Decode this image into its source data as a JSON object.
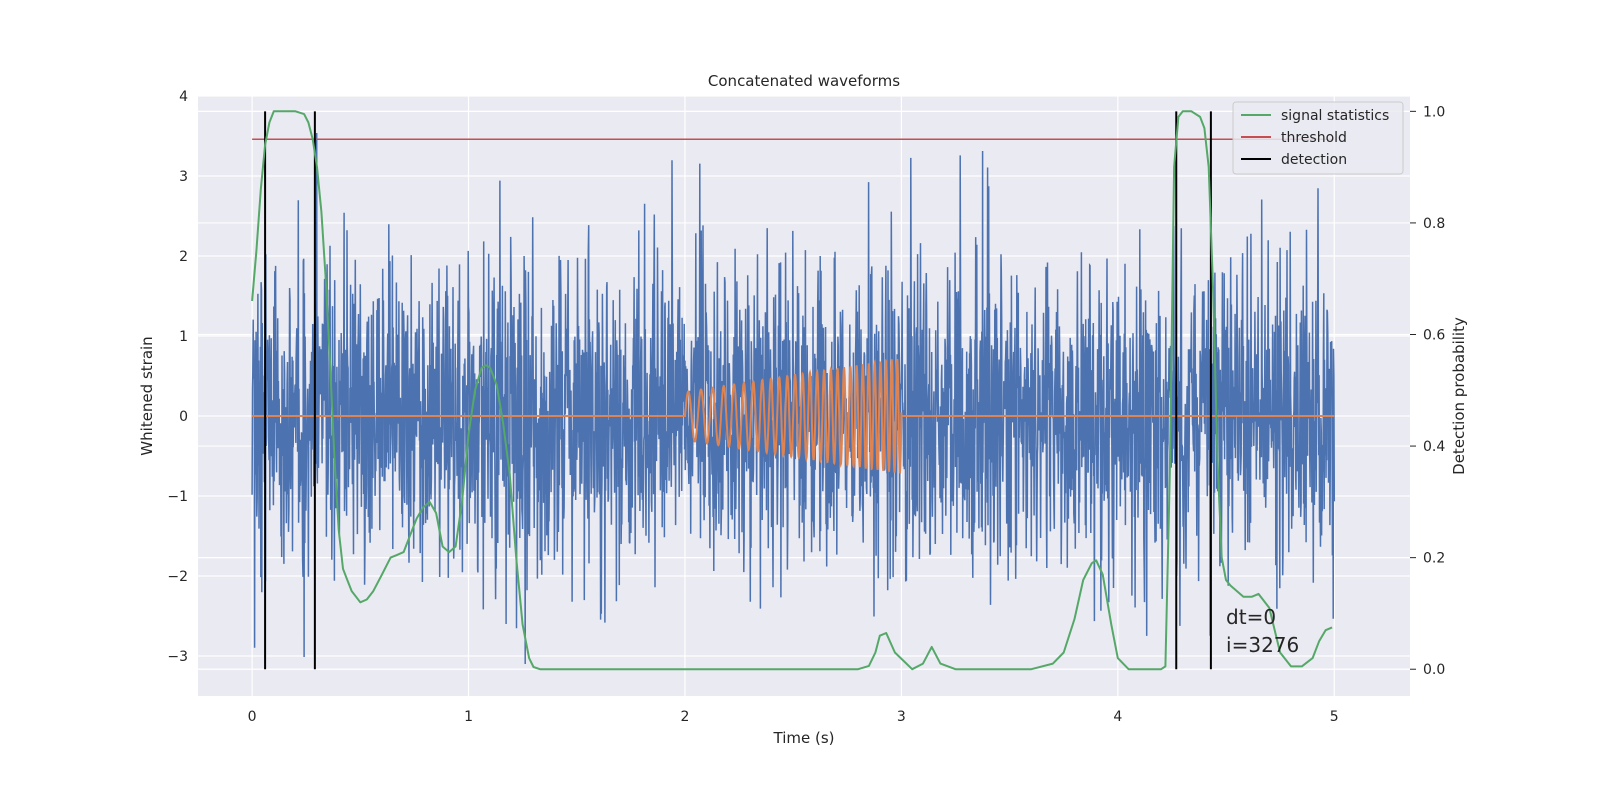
{
  "chart_data": {
    "type": "line",
    "title": "Concatenated waveforms",
    "xlabel": "Time (s)",
    "ylabel": "Whitened strain",
    "y2label": "Detection probability",
    "xlim": [
      -0.25,
      5.35
    ],
    "ylim": [
      -3.5,
      4.0
    ],
    "y2lim": [
      -0.048,
      1.0275
    ],
    "xticks": [
      0,
      1,
      2,
      3,
      4,
      5
    ],
    "yticks": [
      -3,
      -2,
      -1,
      0,
      1,
      2,
      3,
      4
    ],
    "y2ticks": [
      0.0,
      0.2,
      0.4,
      0.6,
      0.8,
      1.0
    ],
    "ytick_labels": [
      "−3",
      "−2",
      "−1",
      "0",
      "1",
      "2",
      "3",
      "4"
    ],
    "y2tick_labels": [
      "0.0",
      "0.2",
      "0.4",
      "0.6",
      "0.8",
      "1.0"
    ],
    "grid": true,
    "legend_position": "top-right",
    "colors": {
      "strain": "#4c72b0",
      "waveform": "#dd8452",
      "signal_statistics": "#55a868",
      "threshold": "#c44e52",
      "detection": "#000000",
      "plot_bg": "#eaeaf2",
      "grid": "#ffffff"
    },
    "series": [
      {
        "name": "",
        "axis": "left",
        "kind": "noise",
        "x_range": [
          0,
          5
        ],
        "sigma": 0.95,
        "typical_peak": 3.6,
        "color_key": "strain"
      },
      {
        "name": "",
        "axis": "left",
        "kind": "chirp",
        "x_range": [
          2,
          3
        ],
        "amplitude_start": 0.3,
        "amplitude_end": 0.72,
        "cycles_start_hz": 16,
        "cycles_end_hz": 40,
        "color_key": "waveform"
      },
      {
        "name": "signal statistics",
        "axis": "right",
        "color_key": "signal_statistics",
        "x": [
          0.0,
          0.02,
          0.04,
          0.06,
          0.08,
          0.1,
          0.12,
          0.14,
          0.16,
          0.2,
          0.24,
          0.26,
          0.28,
          0.3,
          0.32,
          0.34,
          0.36,
          0.38,
          0.4,
          0.42,
          0.44,
          0.46,
          0.48,
          0.5,
          0.53,
          0.56,
          0.6,
          0.64,
          0.67,
          0.7,
          0.73,
          0.76,
          0.79,
          0.82,
          0.85,
          0.88,
          0.91,
          0.94,
          0.97,
          1.0,
          1.03,
          1.06,
          1.08,
          1.1,
          1.13,
          1.16,
          1.19,
          1.22,
          1.25,
          1.28,
          1.3,
          1.33,
          1.4,
          1.6,
          2.0,
          2.5,
          2.8,
          2.85,
          2.88,
          2.9,
          2.93,
          2.97,
          3.05,
          3.1,
          3.14,
          3.18,
          3.25,
          3.4,
          3.6,
          3.7,
          3.75,
          3.8,
          3.84,
          3.88,
          3.9,
          3.93,
          3.97,
          4.0,
          4.05,
          4.15,
          4.2,
          4.22,
          4.24,
          4.26,
          4.28,
          4.3,
          4.34,
          4.38,
          4.4,
          4.42,
          4.44,
          4.46,
          4.48,
          4.5,
          4.52,
          4.55,
          4.58,
          4.62,
          4.65,
          4.7,
          4.75,
          4.8,
          4.85,
          4.9,
          4.93,
          4.96,
          4.99
        ],
        "y": [
          0.66,
          0.75,
          0.86,
          0.94,
          0.98,
          1.0,
          1.0,
          1.0,
          1.0,
          1.0,
          0.995,
          0.98,
          0.95,
          0.9,
          0.82,
          0.7,
          0.55,
          0.38,
          0.25,
          0.18,
          0.16,
          0.14,
          0.13,
          0.12,
          0.125,
          0.14,
          0.17,
          0.2,
          0.205,
          0.21,
          0.24,
          0.27,
          0.29,
          0.3,
          0.28,
          0.22,
          0.21,
          0.22,
          0.3,
          0.42,
          0.5,
          0.54,
          0.545,
          0.54,
          0.51,
          0.44,
          0.35,
          0.2,
          0.08,
          0.02,
          0.004,
          0.0,
          0.0,
          0.0,
          0.0,
          0.0,
          0.0,
          0.006,
          0.03,
          0.06,
          0.065,
          0.03,
          0.0,
          0.01,
          0.04,
          0.01,
          0.0,
          0.0,
          0.0,
          0.01,
          0.03,
          0.09,
          0.16,
          0.19,
          0.195,
          0.17,
          0.08,
          0.02,
          0.0,
          0.0,
          0.0,
          0.005,
          0.35,
          0.9,
          0.99,
          1.0,
          1.0,
          0.99,
          0.97,
          0.9,
          0.68,
          0.38,
          0.2,
          0.16,
          0.15,
          0.14,
          0.13,
          0.13,
          0.135,
          0.11,
          0.03,
          0.005,
          0.005,
          0.02,
          0.05,
          0.07,
          0.075
        ]
      },
      {
        "name": "threshold",
        "axis": "right",
        "color_key": "threshold",
        "x": [
          0,
          5
        ],
        "y": [
          0.95,
          0.95
        ]
      },
      {
        "name": "detection",
        "axis": "right",
        "color_key": "detection",
        "x_positions": [
          0.06,
          0.29,
          4.27,
          4.43
        ],
        "y_range": [
          0.0,
          1.0
        ]
      }
    ],
    "annotations": [
      {
        "text": "dt=0",
        "x": 4.5,
        "y": -2.6
      },
      {
        "text": "i=3276",
        "x": 4.5,
        "y": -2.95
      }
    ]
  }
}
